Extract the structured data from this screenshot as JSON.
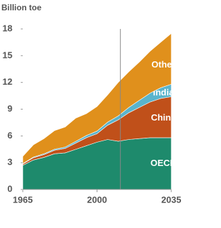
{
  "chart_data": {
    "type": "stacked-area",
    "title": "Billion toe",
    "x": [
      1965,
      1970,
      1975,
      1980,
      1985,
      1990,
      1995,
      2000,
      2005,
      2010,
      2015,
      2020,
      2025,
      2030,
      2035
    ],
    "series": [
      {
        "name": "OECD",
        "color": "#1e8a6c",
        "values": [
          2.7,
          3.3,
          3.6,
          4.0,
          4.1,
          4.5,
          4.9,
          5.3,
          5.6,
          5.4,
          5.6,
          5.7,
          5.8,
          5.8,
          5.8
        ]
      },
      {
        "name": "China",
        "color": "#c0501a",
        "values": [
          0.15,
          0.25,
          0.3,
          0.4,
          0.5,
          0.7,
          0.9,
          0.95,
          1.6,
          2.4,
          3.0,
          3.5,
          4.0,
          4.4,
          4.6
        ]
      },
      {
        "name": "India",
        "color": "#5ab4cc",
        "values": [
          0.05,
          0.08,
          0.1,
          0.12,
          0.15,
          0.2,
          0.25,
          0.3,
          0.35,
          0.45,
          0.6,
          0.8,
          1.0,
          1.2,
          1.4
        ]
      },
      {
        "name": "Other",
        "color": "#e0901c",
        "values": [
          0.8,
          1.37,
          1.7,
          2.08,
          2.25,
          2.6,
          2.45,
          2.75,
          3.05,
          3.75,
          4.0,
          4.3,
          4.7,
          5.1,
          5.7
        ]
      }
    ],
    "xlim": [
      1965,
      2035
    ],
    "xticks": [
      1965,
      2000,
      2035
    ],
    "ylim": [
      0,
      18
    ],
    "yticks": [
      0,
      3,
      6,
      9,
      12,
      15,
      18
    ],
    "vline": 2011
  }
}
